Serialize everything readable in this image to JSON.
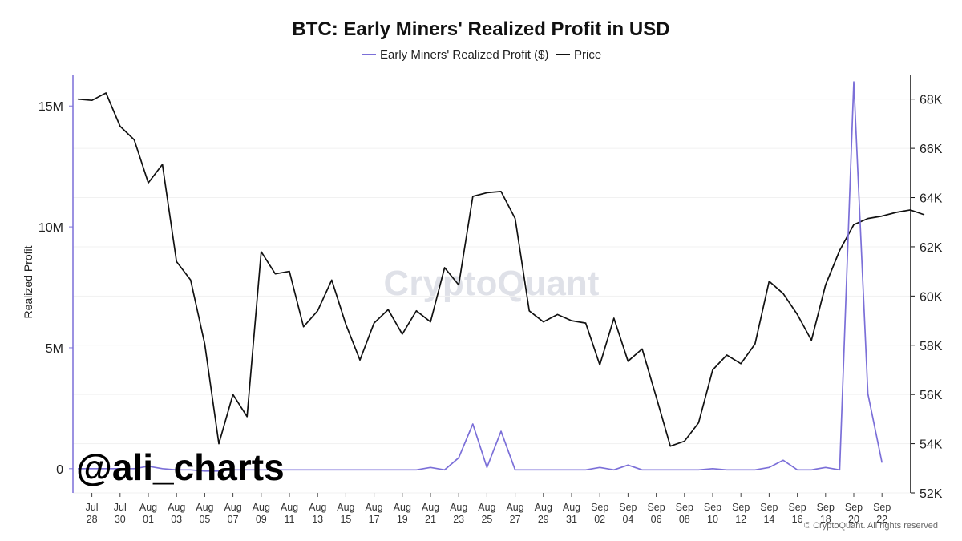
{
  "chart_data": {
    "type": "line",
    "title": "BTC: Early Miners' Realized Profit in USD",
    "ylabel": "Realized Profit",
    "xlabel": "",
    "ylim": [
      -1000000,
      16300000
    ],
    "y2lim": [
      52000,
      69000
    ],
    "yticks_left": [
      {
        "value": 0,
        "label": "0"
      },
      {
        "value": 5000000,
        "label": "5M"
      },
      {
        "value": 10000000,
        "label": "10M"
      },
      {
        "value": 15000000,
        "label": "15M"
      }
    ],
    "yticks_right": [
      {
        "value": 52000,
        "label": "52K"
      },
      {
        "value": 54000,
        "label": "54K"
      },
      {
        "value": 56000,
        "label": "56K"
      },
      {
        "value": 58000,
        "label": "58K"
      },
      {
        "value": 60000,
        "label": "60K"
      },
      {
        "value": 62000,
        "label": "62K"
      },
      {
        "value": 64000,
        "label": "64K"
      },
      {
        "value": 66000,
        "label": "66K"
      },
      {
        "value": 68000,
        "label": "68K"
      }
    ],
    "xticks": [
      {
        "i": 1,
        "l1": "Jul",
        "l2": "28"
      },
      {
        "i": 3,
        "l1": "Jul",
        "l2": "30"
      },
      {
        "i": 5,
        "l1": "Aug",
        "l2": "01"
      },
      {
        "i": 7,
        "l1": "Aug",
        "l2": "03"
      },
      {
        "i": 9,
        "l1": "Aug",
        "l2": "05"
      },
      {
        "i": 11,
        "l1": "Aug",
        "l2": "07"
      },
      {
        "i": 13,
        "l1": "Aug",
        "l2": "09"
      },
      {
        "i": 15,
        "l1": "Aug",
        "l2": "11"
      },
      {
        "i": 17,
        "l1": "Aug",
        "l2": "13"
      },
      {
        "i": 19,
        "l1": "Aug",
        "l2": "15"
      },
      {
        "i": 21,
        "l1": "Aug",
        "l2": "17"
      },
      {
        "i": 23,
        "l1": "Aug",
        "l2": "19"
      },
      {
        "i": 25,
        "l1": "Aug",
        "l2": "21"
      },
      {
        "i": 27,
        "l1": "Aug",
        "l2": "23"
      },
      {
        "i": 29,
        "l1": "Aug",
        "l2": "25"
      },
      {
        "i": 31,
        "l1": "Aug",
        "l2": "27"
      },
      {
        "i": 33,
        "l1": "Aug",
        "l2": "29"
      },
      {
        "i": 35,
        "l1": "Aug",
        "l2": "31"
      },
      {
        "i": 37,
        "l1": "Sep",
        "l2": "02"
      },
      {
        "i": 39,
        "l1": "Sep",
        "l2": "04"
      },
      {
        "i": 41,
        "l1": "Sep",
        "l2": "06"
      },
      {
        "i": 43,
        "l1": "Sep",
        "l2": "08"
      },
      {
        "i": 45,
        "l1": "Sep",
        "l2": "10"
      },
      {
        "i": 47,
        "l1": "Sep",
        "l2": "12"
      },
      {
        "i": 49,
        "l1": "Sep",
        "l2": "14"
      },
      {
        "i": 51,
        "l1": "Sep",
        "l2": "16"
      },
      {
        "i": 53,
        "l1": "Sep",
        "l2": "18"
      },
      {
        "i": 55,
        "l1": "Sep",
        "l2": "20"
      },
      {
        "i": 57,
        "l1": "Sep",
        "l2": "22"
      }
    ],
    "series": [
      {
        "name": "Early Miners' Realized Profit ($)",
        "axis": "left",
        "color": "#7b6fd8",
        "values": [
          0,
          0,
          0,
          0,
          0,
          100000,
          0,
          -50000,
          -50000,
          -100000,
          -100000,
          -50000,
          -50000,
          -50000,
          -50000,
          -50000,
          -50000,
          -50000,
          -50000,
          -50000,
          -50000,
          -50000,
          -50000,
          -50000,
          -50000,
          50000,
          -50000,
          450000,
          1850000,
          50000,
          1550000,
          -50000,
          -50000,
          -50000,
          -50000,
          -50000,
          -50000,
          50000,
          -50000,
          150000,
          -50000,
          -50000,
          -50000,
          -50000,
          -50000,
          0,
          -50000,
          -50000,
          -50000,
          50000,
          350000,
          -50000,
          -50000,
          50000,
          -50000,
          16000000,
          3100000,
          250000
        ]
      },
      {
        "name": "Price",
        "axis": "right",
        "color": "#111111",
        "values": [
          68000,
          67950,
          68250,
          66900,
          66350,
          64600,
          65350,
          61400,
          60650,
          58050,
          54000,
          56000,
          55100,
          61800,
          60900,
          61000,
          58750,
          59400,
          60650,
          58850,
          57400,
          58900,
          59450,
          58450,
          59400,
          58950,
          61150,
          60450,
          64050,
          64200,
          64250,
          63150,
          59400,
          58950,
          59250,
          59000,
          58900,
          57200,
          59100,
          57350,
          57850,
          55900,
          53900,
          54100,
          54850,
          57000,
          57600,
          57250,
          58050,
          60600,
          60100,
          59250,
          58200,
          60450,
          61850,
          62900,
          63150,
          63250,
          63400,
          63500,
          63300
        ]
      }
    ],
    "watermark": "CryptoQuant",
    "annotation": "@ali_charts",
    "copyright": "© CryptoQuant. All rights reserved"
  }
}
